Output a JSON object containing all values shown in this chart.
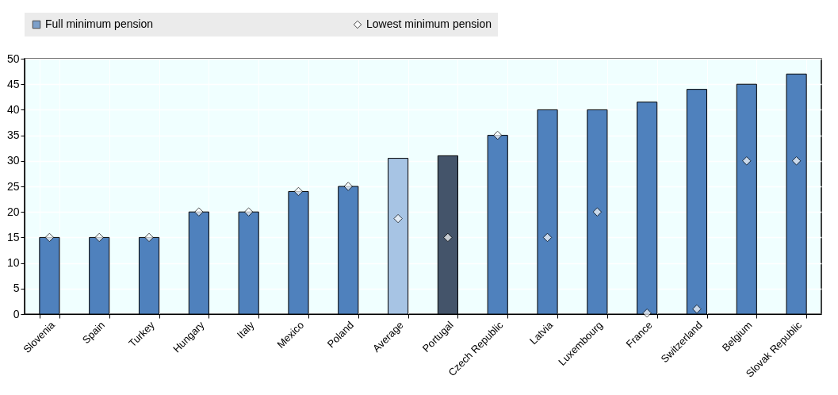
{
  "chart_data": {
    "type": "bar",
    "categories": [
      "Slovenia",
      "Spain",
      "Turkey",
      "Hungary",
      "Italy",
      "Mexico",
      "Poland",
      "Average",
      "Portugal",
      "Czech Republic",
      "Latvia",
      "Luxembourg",
      "France",
      "Switzerland",
      "Belgium",
      "Slovak Republic"
    ],
    "series": [
      {
        "name": "Full minimum pension",
        "type": "bar",
        "color": "#4f81bd",
        "colors": [
          "#4f81bd",
          "#4f81bd",
          "#4f81bd",
          "#4f81bd",
          "#4f81bd",
          "#4f81bd",
          "#4f81bd",
          "#a7c4e4",
          "#44546a",
          "#4f81bd",
          "#4f81bd",
          "#4f81bd",
          "#4f81bd",
          "#4f81bd",
          "#4f81bd",
          "#4f81bd"
        ],
        "values": [
          15,
          15,
          15,
          20,
          20,
          24,
          25,
          30.5,
          31,
          35,
          40,
          40,
          41.5,
          44,
          45,
          47
        ]
      },
      {
        "name": "Lowest minimum pension",
        "type": "scatter",
        "color": "#ffffff",
        "marker": "diamond",
        "values": [
          15,
          15,
          15,
          20,
          20,
          24,
          25,
          18.7,
          15,
          35,
          15,
          20,
          0.2,
          1,
          30,
          30
        ]
      }
    ],
    "ylim": [
      0,
      50
    ],
    "yticks": [
      0,
      5,
      10,
      15,
      20,
      25,
      30,
      35,
      40,
      45,
      50
    ],
    "grid": true,
    "legend": "top"
  }
}
